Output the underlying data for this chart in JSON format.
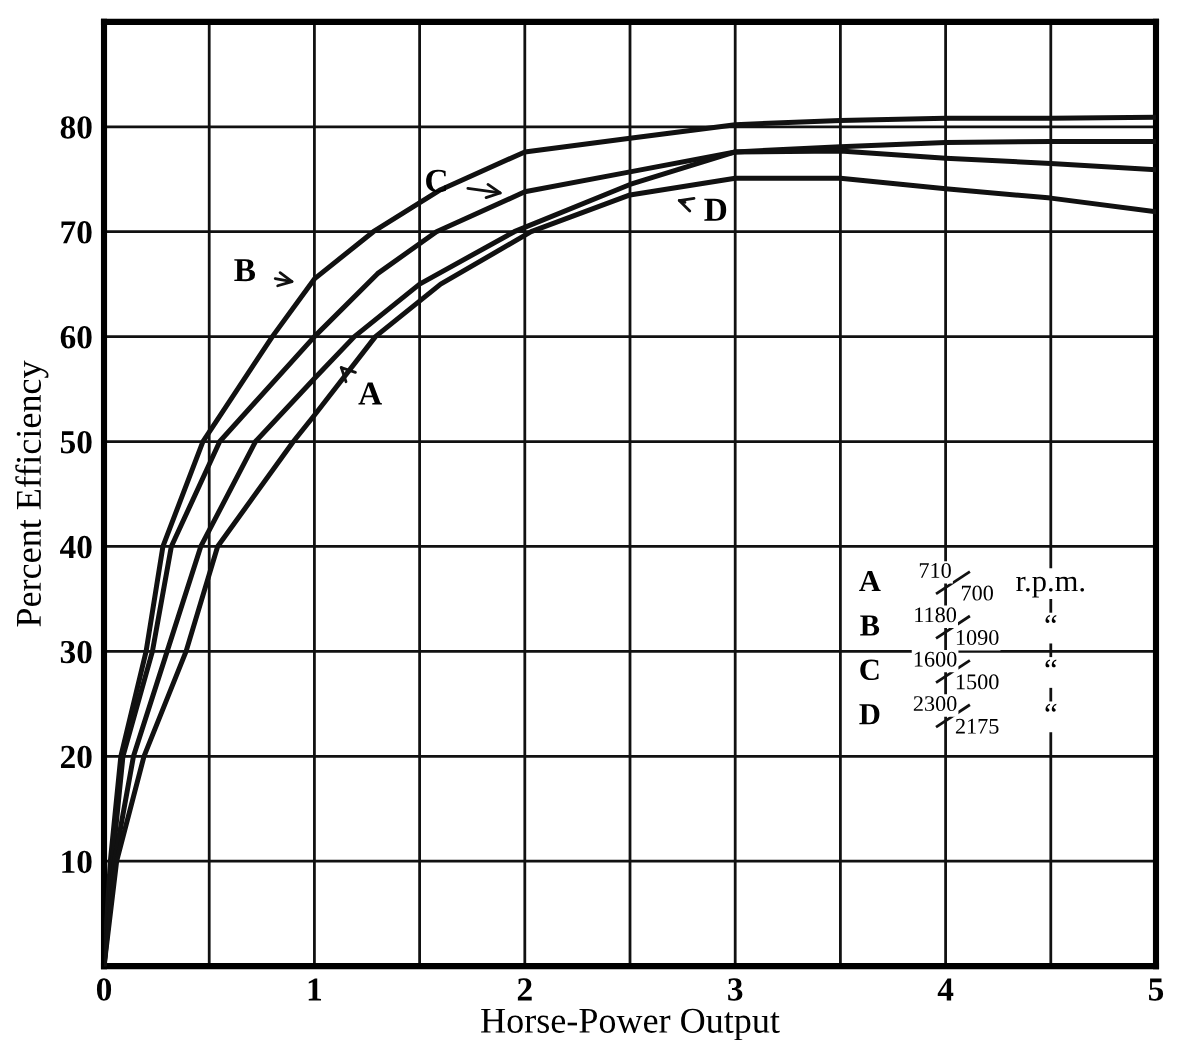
{
  "chart_data": {
    "type": "line",
    "xlabel": "Horse-Power Output",
    "ylabel": "Percent Efficiency",
    "xlim": [
      0,
      5
    ],
    "ylim": [
      0,
      90
    ],
    "xticks": [
      0,
      {
        "value": 0.5,
        "label": null
      },
      1,
      {
        "value": 1.5,
        "label": null
      },
      2,
      {
        "value": 2.5,
        "label": null
      },
      3,
      {
        "value": 3.5,
        "label": null
      },
      4,
      {
        "value": 4.5,
        "label": null
      },
      5
    ],
    "yticks": [
      10,
      20,
      30,
      40,
      50,
      60,
      70,
      80
    ],
    "grid": true,
    "line_style": "solid",
    "series": [
      {
        "color": "#111111",
        "x": [
          0,
          0.03,
          0.08,
          0.2,
          0.28,
          0.47,
          0.8,
          1.0,
          1.28,
          1.6,
          2,
          2.5,
          3,
          3.5,
          4,
          4.5,
          5
        ],
        "values": [
          0,
          10,
          20,
          30,
          40,
          50,
          60,
          65.5,
          70,
          74,
          77.6,
          78.9,
          80.2,
          80.6,
          80.8,
          80.8,
          80.9
        ]
      },
      {
        "color": "#111111",
        "x": [
          0,
          0.04,
          0.09,
          0.23,
          0.32,
          0.55,
          1.0,
          1.3,
          1.58,
          2,
          2.5,
          3,
          3.5,
          4,
          4.5,
          5
        ],
        "values": [
          0,
          10,
          20,
          30,
          40,
          50,
          60,
          66,
          70,
          73.8,
          75.7,
          77.6,
          78.1,
          78.5,
          78.6,
          78.6
        ]
      },
      {
        "color": "#111111",
        "x": [
          0,
          0.05,
          0.14,
          0.3,
          0.46,
          0.72,
          1.0,
          1.19,
          1.5,
          1.95,
          2.5,
          3,
          3.5,
          4,
          4.5,
          5
        ],
        "values": [
          0,
          10,
          20,
          30,
          40,
          50,
          56,
          60,
          65,
          70,
          74.5,
          77.6,
          77.7,
          77,
          76.5,
          75.9
        ]
      },
      {
        "color": "#111111",
        "x": [
          0,
          0.06,
          0.19,
          0.39,
          0.54,
          0.9,
          1.0,
          1.29,
          1.6,
          2.03,
          2.5,
          3,
          3.5,
          4,
          4.5,
          5
        ],
        "values": [
          0,
          10,
          20,
          30,
          40,
          50,
          52.5,
          60,
          65,
          70,
          73.5,
          75.1,
          75.1,
          74.1,
          73.2,
          71.9
        ]
      }
    ],
    "annotations": [
      {
        "text": "B",
        "x": 0.96,
        "y": 65
      },
      {
        "text": "C",
        "x": 1.95,
        "y": 73.5
      },
      {
        "text": "A",
        "x": 1.08,
        "y": 58
      },
      {
        "text": "D",
        "x": 2.67,
        "y": 73.4
      },
      "A",
      "710",
      "700",
      "r.p.m.",
      "B",
      "1180",
      "1090",
      "“",
      "C",
      "1600",
      "1500",
      "“",
      "D",
      "2300",
      "2175",
      "“"
    ]
  }
}
